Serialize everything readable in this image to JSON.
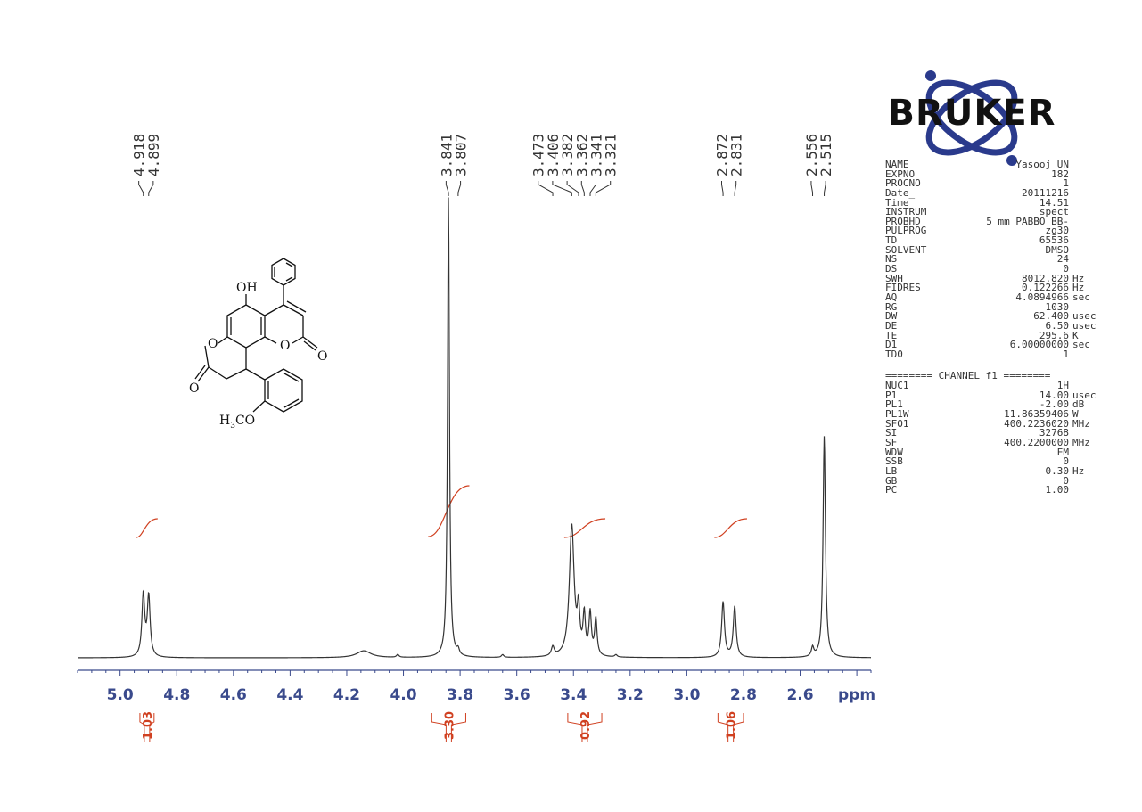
{
  "chart_data": {
    "type": "line",
    "xlabel": "ppm",
    "x_ticks": [
      "5.0",
      "4.8",
      "4.6",
      "4.4",
      "4.2",
      "4.0",
      "3.8",
      "3.6",
      "3.4",
      "3.2",
      "3.0",
      "2.8",
      "2.6"
    ],
    "xlim": [
      5.15,
      2.35
    ],
    "peak_labels": [
      {
        "group": [
          "4.918",
          "4.899"
        ]
      },
      {
        "group": [
          "3.841",
          "3.807"
        ]
      },
      {
        "group": [
          "3.473",
          "3.406",
          "3.382",
          "3.362",
          "3.341",
          "3.321"
        ]
      },
      {
        "group": [
          "2.872",
          "2.831"
        ]
      },
      {
        "group": [
          "2.556",
          "2.515"
        ]
      }
    ],
    "integrals": [
      {
        "range": [
          4.93,
          4.88
        ],
        "value": "1.03"
      },
      {
        "range": [
          3.9,
          3.78
        ],
        "value": "3.30"
      },
      {
        "range": [
          3.42,
          3.3
        ],
        "value": "0.92"
      },
      {
        "range": [
          2.89,
          2.8
        ],
        "value": "1.06"
      }
    ],
    "peaks": [
      {
        "ppm": 4.918,
        "height": 0.135,
        "width": 0.006
      },
      {
        "ppm": 4.899,
        "height": 0.13,
        "width": 0.006
      },
      {
        "ppm": 4.14,
        "height": 0.015,
        "width": 0.03
      },
      {
        "ppm": 4.02,
        "height": 0.006,
        "width": 0.005
      },
      {
        "ppm": 3.841,
        "height": 1.0,
        "width": 0.004
      },
      {
        "ppm": 3.807,
        "height": 0.012,
        "width": 0.005
      },
      {
        "ppm": 3.65,
        "height": 0.006,
        "width": 0.005
      },
      {
        "ppm": 3.473,
        "height": 0.02,
        "width": 0.006
      },
      {
        "ppm": 3.406,
        "height": 0.285,
        "width": 0.01
      },
      {
        "ppm": 3.382,
        "height": 0.09,
        "width": 0.005
      },
      {
        "ppm": 3.362,
        "height": 0.085,
        "width": 0.005
      },
      {
        "ppm": 3.341,
        "height": 0.09,
        "width": 0.005
      },
      {
        "ppm": 3.321,
        "height": 0.08,
        "width": 0.005
      },
      {
        "ppm": 3.25,
        "height": 0.005,
        "width": 0.005
      },
      {
        "ppm": 2.872,
        "height": 0.12,
        "width": 0.006
      },
      {
        "ppm": 2.831,
        "height": 0.11,
        "width": 0.006
      },
      {
        "ppm": 2.556,
        "height": 0.02,
        "width": 0.005
      },
      {
        "ppm": 2.515,
        "height": 0.48,
        "width": 0.005
      }
    ],
    "colors": {
      "spectrum": "#333333",
      "axis": "#3a4a8c",
      "integral": "#d04020"
    }
  },
  "brand": {
    "logo_text": "BRUKER"
  },
  "structure_labels": {
    "oh": "OH",
    "ome_prefix": "H",
    "ome_sub": "3",
    "ome_suffix": "CO",
    "o1": "O",
    "o2": "O",
    "o3": "O",
    "o4": "O"
  },
  "parameters_1": [
    {
      "name": "NAME",
      "value": "Yasooj UN",
      "unit": ""
    },
    {
      "name": "EXPNO",
      "value": "182",
      "unit": ""
    },
    {
      "name": "PROCNO",
      "value": "1",
      "unit": ""
    },
    {
      "name": "Date_",
      "value": "20111216",
      "unit": ""
    },
    {
      "name": "Time",
      "value": "14.51",
      "unit": ""
    },
    {
      "name": "INSTRUM",
      "value": "spect",
      "unit": ""
    },
    {
      "name": "PROBHD",
      "value": "5 mm PABBO BB-",
      "unit": ""
    },
    {
      "name": "PULPROG",
      "value": "zg30",
      "unit": ""
    },
    {
      "name": "TD",
      "value": "65536",
      "unit": ""
    },
    {
      "name": "SOLVENT",
      "value": "DMSO",
      "unit": ""
    },
    {
      "name": "NS",
      "value": "24",
      "unit": ""
    },
    {
      "name": "DS",
      "value": "0",
      "unit": ""
    },
    {
      "name": "SWH",
      "value": "8012.820",
      "unit": "Hz"
    },
    {
      "name": "FIDRES",
      "value": "0.122266",
      "unit": "Hz"
    },
    {
      "name": "AQ",
      "value": "4.0894966",
      "unit": "sec"
    },
    {
      "name": "RG",
      "value": "1030",
      "unit": ""
    },
    {
      "name": "DW",
      "value": "62.400",
      "unit": "usec"
    },
    {
      "name": "DE",
      "value": "6.50",
      "unit": "usec"
    },
    {
      "name": "TE",
      "value": "295.6",
      "unit": "K"
    },
    {
      "name": "D1",
      "value": "6.00000000",
      "unit": "sec"
    },
    {
      "name": "TD0",
      "value": "1",
      "unit": ""
    }
  ],
  "channel_header": "======== CHANNEL f1 ========",
  "parameters_2": [
    {
      "name": "NUC1",
      "value": "1H",
      "unit": ""
    },
    {
      "name": "P1",
      "value": "14.00",
      "unit": "usec"
    },
    {
      "name": "PL1",
      "value": "-2.00",
      "unit": "dB"
    },
    {
      "name": "PL1W",
      "value": "11.86359406",
      "unit": "W"
    },
    {
      "name": "SFO1",
      "value": "400.2236020",
      "unit": "MHz"
    },
    {
      "name": "SI",
      "value": "32768",
      "unit": ""
    },
    {
      "name": "SF",
      "value": "400.2200000",
      "unit": "MHz"
    },
    {
      "name": "WDW",
      "value": "EM",
      "unit": ""
    },
    {
      "name": "SSB",
      "value": "0",
      "unit": ""
    },
    {
      "name": "LB",
      "value": "0.30",
      "unit": "Hz"
    },
    {
      "name": "GB",
      "value": "0",
      "unit": ""
    },
    {
      "name": "PC",
      "value": "1.00",
      "unit": ""
    }
  ]
}
